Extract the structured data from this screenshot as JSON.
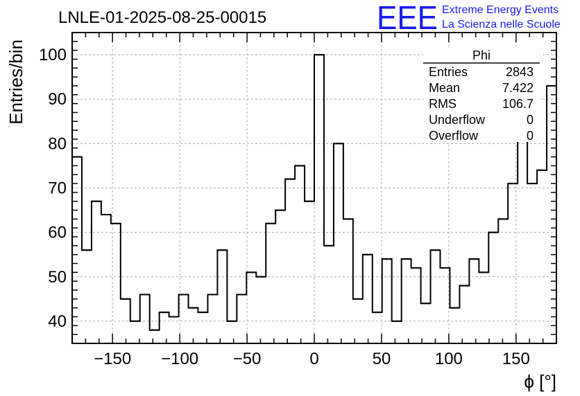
{
  "chart_data": {
    "type": "bar",
    "title": "LNLE-01-2025-08-25-00015",
    "xlabel": "ϕ [°]",
    "ylabel": "Entries/bin",
    "xlim": [
      -180,
      180
    ],
    "ylim": [
      35,
      105
    ],
    "bin_width": 7.2,
    "x_ticks": [
      -150,
      -100,
      -50,
      0,
      50,
      100,
      150
    ],
    "x_tick_labels": [
      "−150",
      "−100",
      "−50",
      "0",
      "50",
      "100",
      "150"
    ],
    "y_ticks": [
      40,
      50,
      60,
      70,
      80,
      90,
      100
    ],
    "y_tick_labels": [
      "40",
      "50",
      "60",
      "70",
      "80",
      "90",
      "100"
    ],
    "grid": true,
    "values": [
      77,
      56,
      67,
      64,
      62,
      45,
      40,
      46,
      38,
      42,
      41,
      46,
      43,
      42,
      46,
      56,
      40,
      46,
      51,
      50,
      62,
      65,
      72,
      75,
      67,
      100,
      57,
      80,
      63,
      45,
      55,
      42,
      54,
      40,
      54,
      52,
      44,
      56,
      52,
      43,
      48,
      54,
      51,
      60,
      63,
      71,
      82,
      71,
      74,
      93
    ],
    "line_color": "#000000"
  },
  "stats_box": {
    "title": "Phi",
    "rows": [
      {
        "label": "Entries",
        "value": "2843"
      },
      {
        "label": "Mean",
        "value": "7.422"
      },
      {
        "label": "RMS",
        "value": "106.7"
      },
      {
        "label": "Underflow",
        "value": "0"
      },
      {
        "label": "Overflow",
        "value": "0"
      }
    ]
  },
  "logo": {
    "mark": "EEE",
    "line1": "Extreme Energy Events",
    "line2": "La Scienza nelle Scuole",
    "color": "#1a1aee"
  }
}
